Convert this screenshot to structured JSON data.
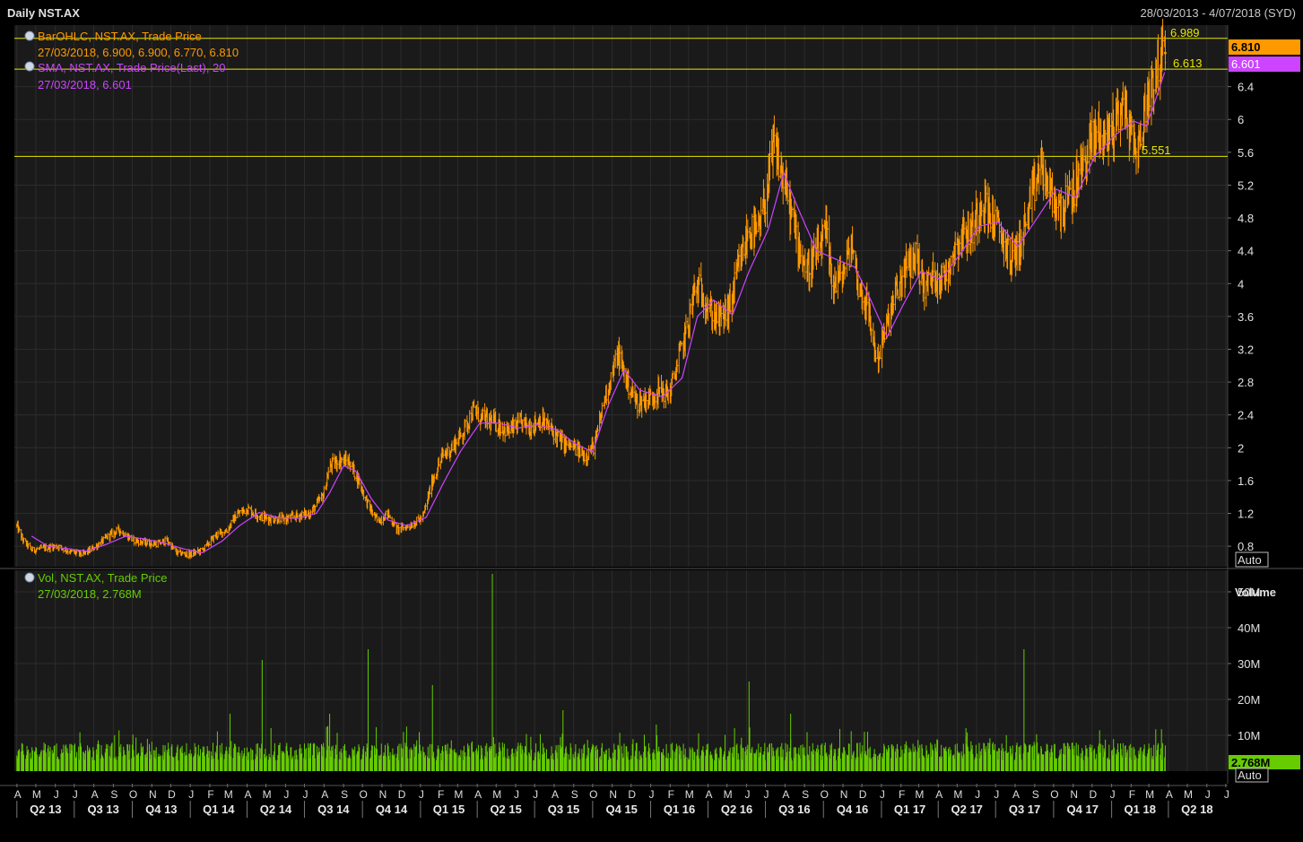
{
  "window": {
    "title": "Daily NST.AX",
    "date_range": "28/03/2013 - 4/07/2018 (SYD)"
  },
  "price_panel": {
    "legend": [
      {
        "title": "BarOHLC, NST.AX, Trade Price",
        "detail": "27/03/2018, 6.900, 6.900, 6.770, 6.810",
        "color": "#ff9900"
      },
      {
        "title": "SMA, NST.AX, Trade Price(Last),  20",
        "detail": "27/03/2018, 6.601",
        "color": "#cc44ff"
      }
    ],
    "y_ticks": [
      "6.4",
      "6",
      "5.6",
      "5.2",
      "4.8",
      "4.4",
      "4",
      "3.6",
      "3.2",
      "2.8",
      "2.4",
      "2",
      "1.6",
      "1.2",
      "0.8"
    ],
    "hlines": [
      {
        "label": "6.989",
        "value": 6.989
      },
      {
        "label": "6.613",
        "value": 6.613
      },
      {
        "label": "5.551",
        "value": 5.551
      }
    ],
    "last_price_badge": "6.810",
    "sma_badge": "6.601",
    "auto_button": "Auto",
    "colors": {
      "price": "#ff9900",
      "sma": "#cc44ff",
      "hline": "#e6e600"
    }
  },
  "volume_panel": {
    "legend_title": "Vol, NST.AX, Trade Price",
    "legend_detail": "27/03/2018, 2.768M",
    "axis_title": "Volume",
    "y_ticks": [
      "50M",
      "40M",
      "30M",
      "20M",
      "10M"
    ],
    "last_volume_badge": "2.768M",
    "auto_button": "Auto",
    "color": "#66cc00"
  },
  "x_axis": {
    "months": [
      "A",
      "M",
      "J",
      "J",
      "A",
      "S",
      "O",
      "N",
      "D",
      "J",
      "F",
      "M",
      "A",
      "M",
      "J",
      "J",
      "A",
      "S",
      "O",
      "N",
      "D",
      "J",
      "F",
      "M",
      "A",
      "M",
      "J",
      "J",
      "A",
      "S",
      "O",
      "N",
      "D",
      "J",
      "F",
      "M",
      "A",
      "M",
      "J",
      "J",
      "A",
      "S",
      "O",
      "N",
      "D",
      "J",
      "F",
      "M",
      "A",
      "M",
      "J",
      "J",
      "A",
      "S",
      "O",
      "N",
      "D",
      "J",
      "F",
      "M",
      "A",
      "M",
      "J",
      "J"
    ],
    "quarters": [
      "Q2 13",
      "Q3 13",
      "Q4 13",
      "Q1 14",
      "Q2 14",
      "Q3 14",
      "Q4 14",
      "Q1 15",
      "Q2 15",
      "Q3 15",
      "Q4 15",
      "Q1 16",
      "Q2 16",
      "Q3 16",
      "Q4 16",
      "Q1 17",
      "Q2 17",
      "Q3 17",
      "Q4 17",
      "Q1 18",
      "Q2 18"
    ]
  },
  "chart_data": {
    "type": "line",
    "title": "Daily NST.AX",
    "x_range": [
      "28/03/2013",
      "4/07/2018"
    ],
    "ylim": [
      0.55,
      7.15
    ],
    "volume_ylim": [
      0,
      56000000
    ],
    "price_series": {
      "name": "BarOHLC, NST.AX, Trade Price",
      "points": [
        [
          "2013-04-01",
          1.05
        ],
        [
          "2013-04-10",
          0.88
        ],
        [
          "2013-04-25",
          0.75
        ],
        [
          "2013-05-15",
          0.78
        ],
        [
          "2013-06-05",
          0.8
        ],
        [
          "2013-06-25",
          0.73
        ],
        [
          "2013-07-15",
          0.7
        ],
        [
          "2013-08-05",
          0.8
        ],
        [
          "2013-08-25",
          0.93
        ],
        [
          "2013-09-10",
          1.0
        ],
        [
          "2013-10-01",
          0.88
        ],
        [
          "2013-10-20",
          0.84
        ],
        [
          "2013-11-10",
          0.83
        ],
        [
          "2013-11-25",
          0.87
        ],
        [
          "2013-12-10",
          0.72
        ],
        [
          "2013-12-31",
          0.7
        ],
        [
          "2014-01-20",
          0.75
        ],
        [
          "2014-02-10",
          0.93
        ],
        [
          "2014-03-01",
          1.0
        ],
        [
          "2014-03-15",
          1.18
        ],
        [
          "2014-04-01",
          1.26
        ],
        [
          "2014-04-20",
          1.17
        ],
        [
          "2014-05-10",
          1.13
        ],
        [
          "2014-06-01",
          1.13
        ],
        [
          "2014-06-20",
          1.17
        ],
        [
          "2014-07-10",
          1.2
        ],
        [
          "2014-07-31",
          1.42
        ],
        [
          "2014-08-10",
          1.77
        ],
        [
          "2014-08-25",
          1.85
        ],
        [
          "2014-09-10",
          1.83
        ],
        [
          "2014-09-25",
          1.6
        ],
        [
          "2014-10-10",
          1.3
        ],
        [
          "2014-10-25",
          1.1
        ],
        [
          "2014-11-10",
          1.2
        ],
        [
          "2014-11-25",
          1.0
        ],
        [
          "2014-12-15",
          1.05
        ],
        [
          "2015-01-05",
          1.15
        ],
        [
          "2015-01-20",
          1.6
        ],
        [
          "2015-02-05",
          1.9
        ],
        [
          "2015-02-20",
          2.0
        ],
        [
          "2015-03-10",
          2.2
        ],
        [
          "2015-03-25",
          2.45
        ],
        [
          "2015-04-10",
          2.35
        ],
        [
          "2015-04-30",
          2.3
        ],
        [
          "2015-05-20",
          2.2
        ],
        [
          "2015-06-10",
          2.3
        ],
        [
          "2015-06-25",
          2.25
        ],
        [
          "2015-07-10",
          2.35
        ],
        [
          "2015-07-30",
          2.2
        ],
        [
          "2015-08-15",
          2.05
        ],
        [
          "2015-09-01",
          2.0
        ],
        [
          "2015-09-20",
          1.9
        ],
        [
          "2015-10-05",
          2.05
        ],
        [
          "2015-10-20",
          2.6
        ],
        [
          "2015-11-01",
          2.9
        ],
        [
          "2015-11-10",
          3.15
        ],
        [
          "2015-11-25",
          2.8
        ],
        [
          "2015-12-10",
          2.55
        ],
        [
          "2015-12-30",
          2.6
        ],
        [
          "2016-01-15",
          2.7
        ],
        [
          "2016-01-31",
          2.65
        ],
        [
          "2016-02-15",
          3.1
        ],
        [
          "2016-02-28",
          3.45
        ],
        [
          "2016-03-10",
          3.9
        ],
        [
          "2016-03-20",
          3.95
        ],
        [
          "2016-04-05",
          3.65
        ],
        [
          "2016-04-20",
          3.55
        ],
        [
          "2016-05-05",
          3.7
        ],
        [
          "2016-05-20",
          4.2
        ],
        [
          "2016-06-05",
          4.65
        ],
        [
          "2016-06-20",
          4.6
        ],
        [
          "2016-07-05",
          5.2
        ],
        [
          "2016-07-15",
          5.7
        ],
        [
          "2016-07-25",
          5.4
        ],
        [
          "2016-08-05",
          5.05
        ],
        [
          "2016-08-20",
          4.55
        ],
        [
          "2016-09-05",
          4.15
        ],
        [
          "2016-09-20",
          4.35
        ],
        [
          "2016-10-05",
          4.6
        ],
        [
          "2016-10-15",
          4.0
        ],
        [
          "2016-10-31",
          4.1
        ],
        [
          "2016-11-15",
          4.5
        ],
        [
          "2016-11-25",
          4.0
        ],
        [
          "2016-12-10",
          3.7
        ],
        [
          "2016-12-25",
          3.05
        ],
        [
          "2017-01-10",
          3.5
        ],
        [
          "2017-01-25",
          3.9
        ],
        [
          "2017-02-10",
          4.2
        ],
        [
          "2017-02-25",
          4.35
        ],
        [
          "2017-03-10",
          3.95
        ],
        [
          "2017-03-25",
          4.1
        ],
        [
          "2017-04-10",
          4.05
        ],
        [
          "2017-04-25",
          4.4
        ],
        [
          "2017-05-10",
          4.6
        ],
        [
          "2017-05-25",
          4.65
        ],
        [
          "2017-06-10",
          5.05
        ],
        [
          "2017-06-25",
          4.8
        ],
        [
          "2017-07-10",
          4.6
        ],
        [
          "2017-07-25",
          4.3
        ],
        [
          "2017-08-10",
          4.5
        ],
        [
          "2017-08-25",
          4.95
        ],
        [
          "2017-09-10",
          5.45
        ],
        [
          "2017-09-25",
          5.1
        ],
        [
          "2017-10-10",
          4.9
        ],
        [
          "2017-10-25",
          5.0
        ],
        [
          "2017-11-10",
          5.3
        ],
        [
          "2017-11-25",
          5.65
        ],
        [
          "2017-12-10",
          5.85
        ],
        [
          "2017-12-25",
          5.8
        ],
        [
          "2018-01-05",
          5.95
        ],
        [
          "2018-01-15",
          6.2
        ],
        [
          "2018-01-25",
          6.05
        ],
        [
          "2018-02-05",
          5.65
        ],
        [
          "2018-02-15",
          5.7
        ],
        [
          "2018-02-25",
          6.25
        ],
        [
          "2018-03-10",
          6.55
        ],
        [
          "2018-03-20",
          6.75
        ],
        [
          "2018-03-27",
          6.81
        ]
      ]
    },
    "sma_series": {
      "name": "SMA, NST.AX, Trade Price(Last),  20",
      "points": [
        [
          "2013-04-25",
          0.92
        ],
        [
          "2013-05-20",
          0.8
        ],
        [
          "2013-06-20",
          0.77
        ],
        [
          "2013-07-20",
          0.74
        ],
        [
          "2013-08-20",
          0.82
        ],
        [
          "2013-09-20",
          0.92
        ],
        [
          "2013-10-20",
          0.89
        ],
        [
          "2013-11-20",
          0.84
        ],
        [
          "2013-12-20",
          0.77
        ],
        [
          "2014-01-20",
          0.72
        ],
        [
          "2014-02-20",
          0.86
        ],
        [
          "2014-03-20",
          1.05
        ],
        [
          "2014-04-20",
          1.21
        ],
        [
          "2014-05-20",
          1.15
        ],
        [
          "2014-06-20",
          1.14
        ],
        [
          "2014-07-20",
          1.2
        ],
        [
          "2014-08-10",
          1.45
        ],
        [
          "2014-09-01",
          1.78
        ],
        [
          "2014-09-20",
          1.72
        ],
        [
          "2014-10-15",
          1.38
        ],
        [
          "2014-11-10",
          1.12
        ],
        [
          "2014-12-10",
          1.05
        ],
        [
          "2015-01-10",
          1.15
        ],
        [
          "2015-02-05",
          1.55
        ],
        [
          "2015-03-05",
          1.95
        ],
        [
          "2015-04-05",
          2.3
        ],
        [
          "2015-05-05",
          2.3
        ],
        [
          "2015-06-05",
          2.24
        ],
        [
          "2015-07-05",
          2.28
        ],
        [
          "2015-08-05",
          2.22
        ],
        [
          "2015-09-05",
          2.04
        ],
        [
          "2015-10-01",
          1.95
        ],
        [
          "2015-10-25",
          2.5
        ],
        [
          "2015-11-20",
          2.95
        ],
        [
          "2015-12-15",
          2.7
        ],
        [
          "2016-01-20",
          2.62
        ],
        [
          "2016-02-20",
          2.85
        ],
        [
          "2016-03-15",
          3.6
        ],
        [
          "2016-04-10",
          3.8
        ],
        [
          "2016-05-10",
          3.62
        ],
        [
          "2016-06-05",
          4.15
        ],
        [
          "2016-07-05",
          4.65
        ],
        [
          "2016-07-30",
          5.35
        ],
        [
          "2016-08-20",
          4.95
        ],
        [
          "2016-09-20",
          4.4
        ],
        [
          "2016-10-20",
          4.3
        ],
        [
          "2016-11-20",
          4.2
        ],
        [
          "2016-12-15",
          3.8
        ],
        [
          "2017-01-10",
          3.35
        ],
        [
          "2017-02-05",
          3.75
        ],
        [
          "2017-03-05",
          4.15
        ],
        [
          "2017-04-05",
          4.05
        ],
        [
          "2017-05-05",
          4.35
        ],
        [
          "2017-06-05",
          4.7
        ],
        [
          "2017-07-05",
          4.75
        ],
        [
          "2017-08-05",
          4.45
        ],
        [
          "2017-09-05",
          4.8
        ],
        [
          "2017-10-05",
          5.15
        ],
        [
          "2017-11-05",
          5.05
        ],
        [
          "2017-12-05",
          5.55
        ],
        [
          "2018-01-05",
          5.8
        ],
        [
          "2018-02-05",
          5.98
        ],
        [
          "2018-02-25",
          5.92
        ],
        [
          "2018-03-10",
          6.2
        ],
        [
          "2018-03-27",
          6.6
        ]
      ]
    },
    "volume_series": {
      "name": "Vol, NST.AX, Trade Price",
      "spikes": [
        [
          "2014-03-05",
          16000000
        ],
        [
          "2014-04-25",
          31000000
        ],
        [
          "2014-08-10",
          16000000
        ],
        [
          "2014-10-10",
          34000000
        ],
        [
          "2015-01-20",
          24000000
        ],
        [
          "2015-04-25",
          55000000
        ],
        [
          "2015-08-15",
          17000000
        ],
        [
          "2016-06-05",
          25000000
        ],
        [
          "2016-08-10",
          16000000
        ],
        [
          "2017-08-15",
          34000000
        ],
        [
          "2017-05-15",
          12000000
        ],
        [
          "2013-10-25",
          9000000
        ],
        [
          "2016-01-10",
          13000000
        ],
        [
          "2016-12-10",
          11000000
        ]
      ],
      "baseline_min": 3000000,
      "baseline_max": 8000000,
      "last": 2768000
    }
  }
}
